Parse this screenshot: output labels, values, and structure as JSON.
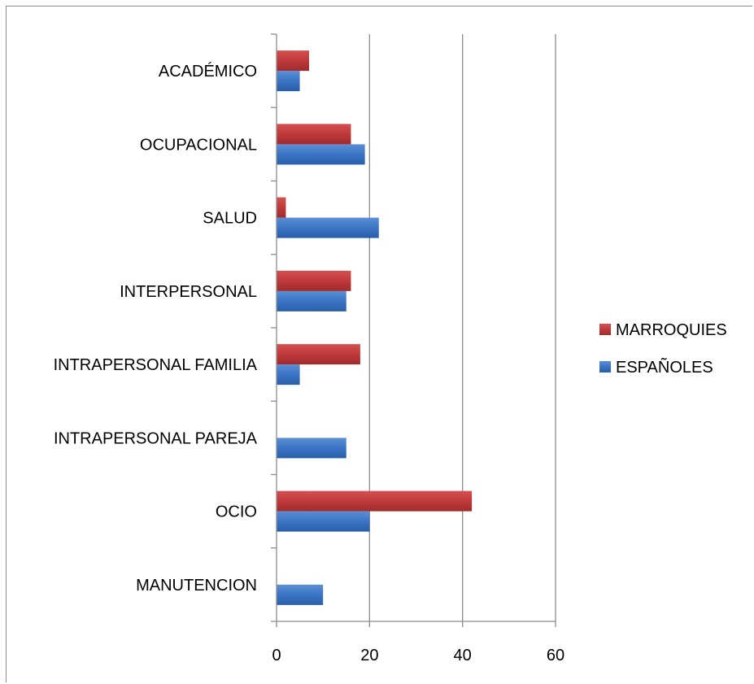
{
  "chart_data": {
    "type": "bar",
    "orientation": "horizontal",
    "title": "",
    "xlabel": "",
    "ylabel": "",
    "categories": [
      "MANUTENCION",
      "OCIO",
      "INTRAPERSONAL PAREJA",
      "INTRAPERSONAL FAMILIA",
      "INTERPERSONAL",
      "SALUD",
      "OCUPACIONAL",
      "ACADÉMICO"
    ],
    "series": [
      {
        "name": "ESPAÑOLES",
        "color": "#3a74c4",
        "values": [
          10,
          20,
          15,
          5,
          15,
          22,
          19,
          5
        ]
      },
      {
        "name": "MARROQUIES",
        "color": "#c0393b",
        "values": [
          0,
          42,
          0,
          18,
          16,
          2,
          16,
          7
        ]
      }
    ],
    "xlim": [
      0,
      60
    ],
    "xticks": [
      "0",
      "20",
      "40",
      "60"
    ],
    "grid": true,
    "legend_position": "right",
    "legend": [
      {
        "name": "MARROQUIES",
        "color": "#c0393b"
      },
      {
        "name": "ESPAÑOLES",
        "color": "#3a74c4"
      }
    ]
  }
}
